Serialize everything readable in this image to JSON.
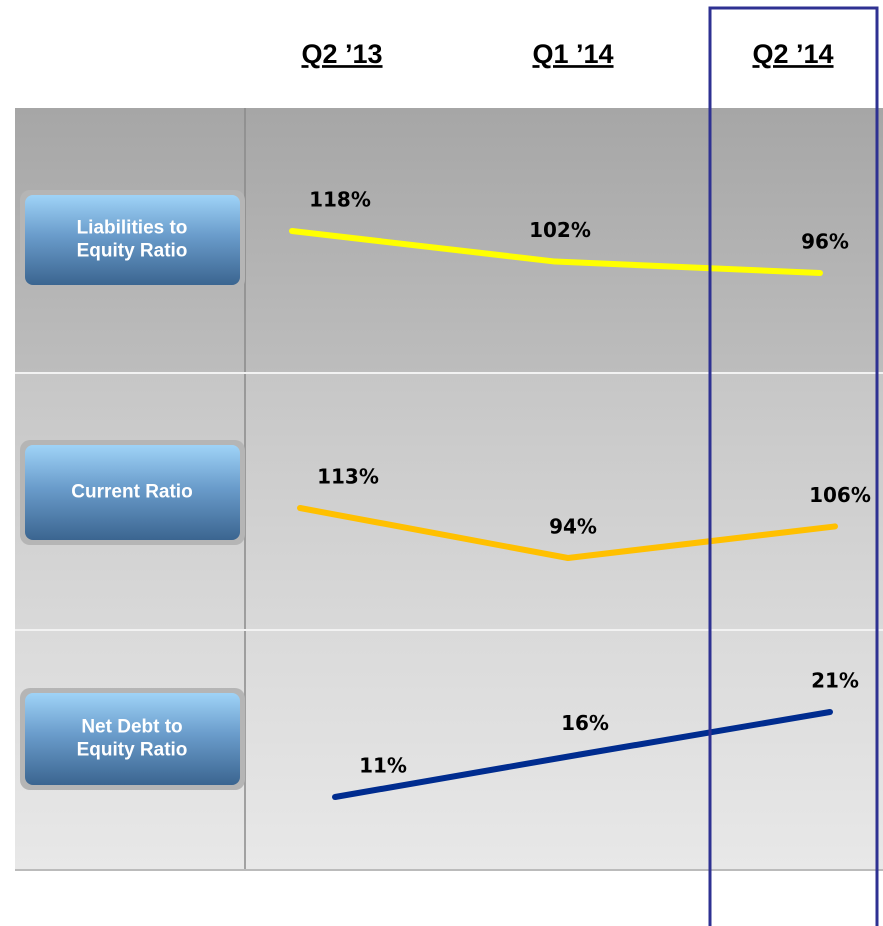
{
  "header": {
    "columns": [
      "Q2 ’13",
      "Q1 ’14",
      "Q2 ’14"
    ]
  },
  "rows": [
    {
      "label": "Liabilities to Equity Ratio",
      "values": [
        118,
        102,
        96
      ],
      "value_labels": [
        "118%",
        "102%",
        "96%"
      ],
      "color": "#ffff00"
    },
    {
      "label": "Current Ratio",
      "values": [
        113,
        94,
        106
      ],
      "value_labels": [
        "113%",
        "94%",
        "106%"
      ],
      "color": "#ffc000"
    },
    {
      "label": "Net Debt to Equity Ratio",
      "values": [
        11,
        16,
        21
      ],
      "value_labels": [
        "11%",
        "16%",
        "21%"
      ],
      "color": "#002c8f"
    }
  ]
}
